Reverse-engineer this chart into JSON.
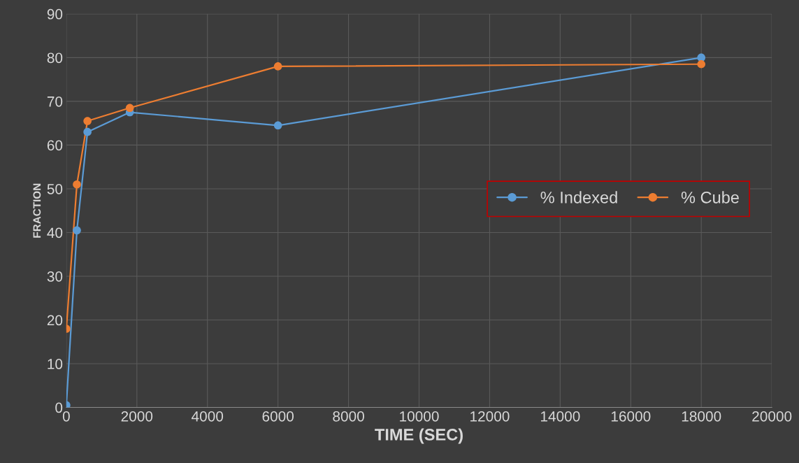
{
  "chart_data": {
    "type": "line",
    "xlabel": "TIME (SEC)",
    "ylabel": "FRACTION",
    "x": [
      0,
      300,
      600,
      1800,
      6000,
      18000
    ],
    "series": [
      {
        "name": "% Indexed",
        "color": "#5b9bd5",
        "values": [
          0.5,
          40.5,
          63,
          67.5,
          64.5,
          80
        ]
      },
      {
        "name": "% Cube",
        "color": "#ed7d31",
        "values": [
          18,
          51,
          65.5,
          68.5,
          78,
          78.5
        ]
      }
    ],
    "xlim": [
      0,
      20000
    ],
    "xticks": [
      0,
      2000,
      4000,
      6000,
      8000,
      10000,
      12000,
      14000,
      16000,
      18000,
      20000
    ],
    "ylim": [
      0,
      90
    ],
    "yticks": [
      0,
      10,
      20,
      30,
      40,
      50,
      60,
      70,
      80,
      90
    ],
    "grid": true,
    "legend": "right",
    "marker": "circle",
    "line_style": "solid"
  }
}
